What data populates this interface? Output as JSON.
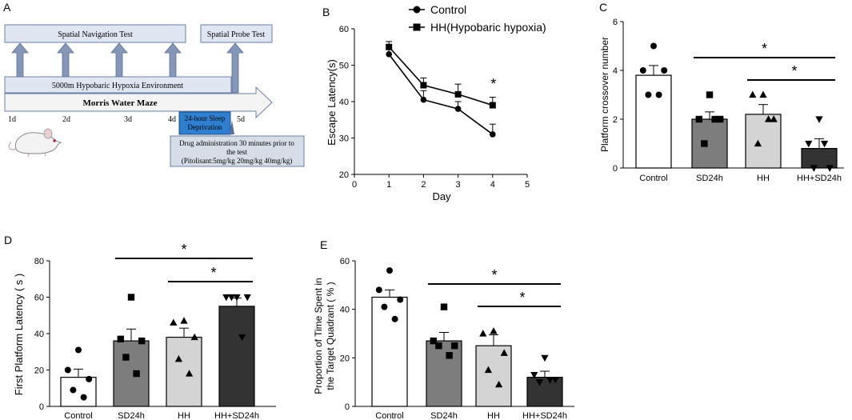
{
  "panel_labels": {
    "a": "A",
    "b": "B",
    "c": "C",
    "d": "D",
    "e": "E"
  },
  "panel_a": {
    "spatial_navigation_test": "Spatial Navigation Test",
    "spatial_probe_test": "Spatial Probe Test",
    "hypoxia_environment": "5000m Hypobaric Hypoxia Environment",
    "morris_water_maze": "Morris Water Maze",
    "days": [
      "1d",
      "2d",
      "3d",
      "4d",
      "5d"
    ],
    "sleep_deprivation_line1": "24-hour Sleep",
    "sleep_deprivation_line2": "Deprivation",
    "drug_line1": "Drug administration 30 minutes prior to",
    "drug_line2": "the test",
    "drug_line3": "(Pitolisant:5mg/kg 20mg/kg 40mg/kg)"
  },
  "chart_data": [
    {
      "id": "B",
      "type": "line",
      "xlabel": "Day",
      "ylabel": "Escape Latency(s)",
      "xlim": [
        0,
        5
      ],
      "ylim": [
        20,
        60
      ],
      "xticks": [
        "0",
        "1",
        "2",
        "3",
        "4",
        "5"
      ],
      "yticks": [
        "20",
        "30",
        "40",
        "50",
        "60"
      ],
      "series": [
        {
          "name": "Control",
          "marker": "circle",
          "x": [
            1,
            2,
            3,
            4
          ],
          "values": [
            53,
            40.5,
            38,
            31
          ],
          "errors": [
            1.5,
            2.5,
            2,
            2.8
          ]
        },
        {
          "name": "HH(Hypobaric hypoxia)",
          "marker": "square",
          "x": [
            1,
            2,
            3,
            4
          ],
          "values": [
            55,
            44.5,
            42,
            39
          ],
          "errors": [
            1.5,
            2,
            2.8,
            2.2
          ]
        }
      ],
      "annotations": [
        "*"
      ]
    },
    {
      "id": "C",
      "type": "bar",
      "ylabel": "Platform crossover number",
      "ylim": [
        0,
        6
      ],
      "yticks": [
        "0",
        "2",
        "4",
        "6"
      ],
      "categories": [
        "Control",
        "SD24h",
        "HH",
        "HH+SD24h"
      ],
      "values": [
        3.8,
        2.0,
        2.2,
        0.8
      ],
      "errors": [
        0.4,
        0.3,
        0.4,
        0.4
      ],
      "points": [
        [
          5,
          4,
          4,
          3,
          3
        ],
        [
          3,
          2,
          2,
          1,
          2
        ],
        [
          3,
          3,
          2,
          1,
          2
        ],
        [
          2,
          1,
          0,
          0,
          1
        ]
      ],
      "significance": [
        {
          "from": "SD24h",
          "to": "HH+SD24h",
          "label": "*"
        },
        {
          "from": "HH",
          "to": "HH+SD24h",
          "label": "*"
        }
      ]
    },
    {
      "id": "D",
      "type": "bar",
      "ylabel": "First Platform Latency ( s )",
      "ylim": [
        0,
        80
      ],
      "yticks": [
        "0",
        "20",
        "40",
        "60",
        "80"
      ],
      "categories": [
        "Control",
        "SD24h",
        "HH",
        "HH+SD24h"
      ],
      "values": [
        16,
        36,
        38,
        55
      ],
      "errors": [
        4.5,
        6.5,
        5,
        4.5
      ],
      "points": [
        [
          31,
          20,
          15,
          9,
          5
        ],
        [
          60,
          37,
          36,
          27,
          18
        ],
        [
          47,
          46,
          38,
          26,
          18
        ],
        [
          60,
          60,
          60,
          60,
          38
        ]
      ],
      "significance": [
        {
          "from": "SD24h",
          "to": "HH+SD24h",
          "label": "*"
        },
        {
          "from": "HH",
          "to": "HH+SD24h",
          "label": "*"
        }
      ]
    },
    {
      "id": "E",
      "type": "bar",
      "ylabel_line1": "Proportion of Time Spent in",
      "ylabel_line2": "the Target Quadrant ( % )",
      "ylim": [
        0,
        60
      ],
      "yticks": [
        "0",
        "20",
        "40",
        "60"
      ],
      "categories": [
        "Control",
        "SD24h",
        "HH",
        "HH+SD24h"
      ],
      "values": [
        45,
        27,
        25,
        12
      ],
      "errors": [
        3,
        3.5,
        4.5,
        2.5
      ],
      "points": [
        [
          56,
          48,
          44,
          41,
          36
        ],
        [
          41,
          27,
          25,
          25,
          21
        ],
        [
          31,
          30,
          22,
          15,
          9
        ],
        [
          20,
          13,
          11,
          10,
          11
        ]
      ],
      "significance": [
        {
          "from": "SD24h",
          "to": "HH+SD24h",
          "label": "*"
        },
        {
          "from": "HH",
          "to": "HH+SD24h",
          "label": "*"
        }
      ]
    }
  ]
}
